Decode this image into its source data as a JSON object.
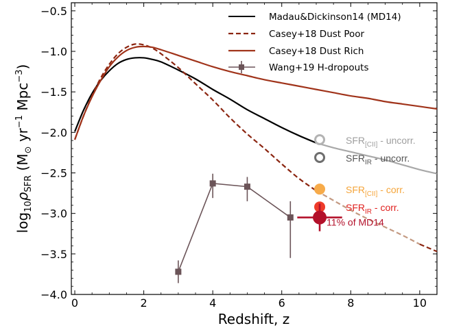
{
  "chart_data": {
    "type": "line",
    "xlabel": "Redshift, z",
    "ylabel_parts": {
      "main": "log",
      "sub10": "10",
      "rho": "ρ",
      "subsfr": "SFR",
      "units_open": " (M",
      "sun": "⊙",
      "yr": " yr",
      "exp1": "−1",
      "mpc": " Mpc",
      "exp3": "−3",
      "close": ")"
    },
    "xlim": [
      -0.1,
      10.5
    ],
    "ylim": [
      -4.0,
      -0.4
    ],
    "xticks": [
      0,
      2,
      4,
      6,
      8,
      10
    ],
    "yticks": [
      -4.0,
      -3.5,
      -3.0,
      -2.5,
      -2.0,
      -1.5,
      -1.0,
      -0.5
    ],
    "ytick_labels": [
      "−4.0",
      "−3.5",
      "−3.0",
      "−2.5",
      "−2.0",
      "−1.5",
      "−1.0",
      "−0.5"
    ],
    "legend_position": "top-right",
    "series": [
      {
        "name": "Madau&Dickinson14 (MD14)",
        "style": "solid",
        "color": "#000000",
        "x": [
          0,
          0.25,
          0.5,
          0.75,
          1.0,
          1.25,
          1.5,
          1.75,
          2.0,
          2.25,
          2.5,
          3.0,
          3.5,
          4.0,
          4.5,
          5.0,
          5.5,
          6.0,
          6.5,
          7.0
        ],
        "y": [
          -1.99,
          -1.73,
          -1.52,
          -1.36,
          -1.24,
          -1.15,
          -1.1,
          -1.08,
          -1.08,
          -1.1,
          -1.13,
          -1.23,
          -1.34,
          -1.47,
          -1.59,
          -1.72,
          -1.83,
          -1.94,
          -2.04,
          -2.13
        ]
      },
      {
        "name": "MD14 extrapolation",
        "style": "solid",
        "color": "#a8a8a8",
        "x": [
          7.0,
          7.5,
          8.0,
          8.5,
          9.0,
          9.5,
          10.0,
          10.5
        ],
        "y": [
          -2.13,
          -2.19,
          -2.24,
          -2.29,
          -2.34,
          -2.4,
          -2.46,
          -2.51
        ]
      },
      {
        "name": "Casey+18 Dust Poor",
        "style": "dashed",
        "color": "#8b2510",
        "x": [
          0,
          0.25,
          0.5,
          0.75,
          1.0,
          1.25,
          1.5,
          1.75,
          2.0,
          2.25,
          2.5,
          3.0,
          3.5,
          4.0,
          4.5,
          5.0,
          5.5,
          6.0,
          6.5,
          7.0
        ],
        "y": [
          -2.09,
          -1.8,
          -1.55,
          -1.33,
          -1.16,
          -1.03,
          -0.95,
          -0.91,
          -0.92,
          -0.96,
          -1.03,
          -1.2,
          -1.4,
          -1.6,
          -1.82,
          -2.02,
          -2.2,
          -2.39,
          -2.57,
          -2.72
        ]
      },
      {
        "name": "Casey+18 Dust Poor extrapolation",
        "style": "dashed",
        "color": "#c49a82",
        "x": [
          7.0,
          7.5,
          8.0,
          8.5,
          9.0,
          9.5,
          10.0
        ],
        "y": [
          -2.72,
          -2.84,
          -2.96,
          -3.07,
          -3.17,
          -3.27,
          -3.38
        ]
      },
      {
        "name": "Casey+18 Dust Poor extrapolation (end)",
        "style": "dashed",
        "color": "#8b2510",
        "x": [
          10.0,
          10.5
        ],
        "y": [
          -3.38,
          -3.47
        ]
      },
      {
        "name": "Casey+18 Dust Rich",
        "style": "solid",
        "color": "#a0331a",
        "x": [
          0,
          0.25,
          0.5,
          0.75,
          1.0,
          1.25,
          1.5,
          1.75,
          2.0,
          2.25,
          2.5,
          3.0,
          3.5,
          4.0,
          4.5,
          5.0,
          5.5,
          6.0,
          6.5,
          7.0,
          7.5,
          8.0,
          8.5,
          9.0,
          9.5,
          10.0,
          10.5
        ],
        "y": [
          -2.09,
          -1.8,
          -1.56,
          -1.36,
          -1.19,
          -1.07,
          -0.99,
          -0.95,
          -0.94,
          -0.95,
          -0.98,
          -1.05,
          -1.12,
          -1.19,
          -1.25,
          -1.3,
          -1.35,
          -1.39,
          -1.43,
          -1.47,
          -1.51,
          -1.55,
          -1.58,
          -1.62,
          -1.65,
          -1.68,
          -1.71
        ]
      }
    ],
    "points": {
      "name": "Wang+19 H-dropouts",
      "color": "#6b5458",
      "x": [
        3.0,
        4.0,
        5.0,
        6.25
      ],
      "y": [
        -3.72,
        -2.63,
        -2.67,
        -3.05
      ],
      "yerr_low": [
        0.14,
        0.18,
        0.18,
        0.5
      ],
      "yerr_high": [
        0.14,
        0.12,
        0.12,
        0.2
      ]
    },
    "annotations": [
      {
        "label": "SFR",
        "sub": "[CII]",
        "suffix": " - uncorr.",
        "x": 7.1,
        "y": -2.09,
        "marker": "open",
        "color": "#b3b3b3",
        "text_color": "#9e9e9e"
      },
      {
        "label": "SFR",
        "sub": "IR",
        "suffix": " - uncorr.",
        "x": 7.1,
        "y": -2.31,
        "marker": "open",
        "color": "#6e6e6e",
        "text_color": "#555555"
      },
      {
        "label": "SFR",
        "sub": "[CII]",
        "suffix": " - corr.",
        "x": 7.1,
        "y": -2.7,
        "marker": "filled",
        "color": "#f7ab4a",
        "text_color": "#f5a53a"
      },
      {
        "label": "SFR",
        "sub": "IR",
        "suffix": " - corr.",
        "x": 7.1,
        "y": -2.92,
        "marker": "filled",
        "color": "#ee3b2a",
        "text_color": "#e0201e"
      },
      {
        "label": "11% of MD14",
        "sub": "",
        "suffix": "",
        "x": 7.1,
        "y": -3.05,
        "marker": "big",
        "color": "#b3102a",
        "text_color": "#b3102a",
        "xerr": 0.65,
        "yerr_low": 0.17,
        "yerr_high": 0.17
      }
    ]
  }
}
